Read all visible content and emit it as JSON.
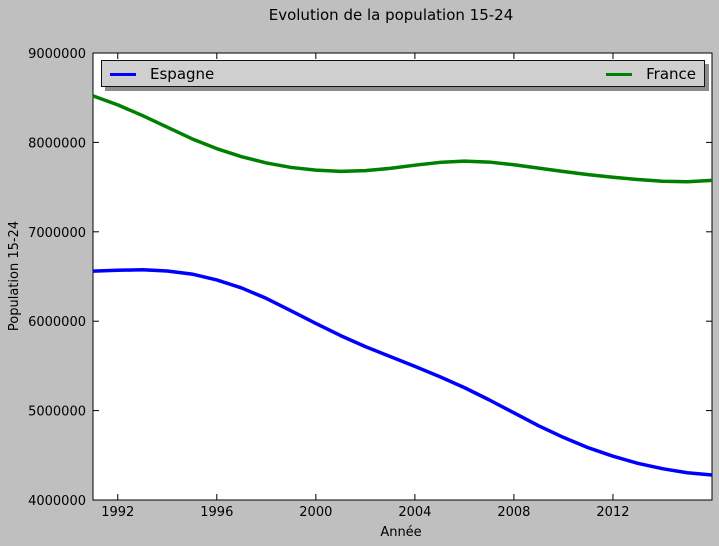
{
  "chart_data": {
    "type": "line",
    "title": "Evolution de la population 15-24",
    "xlabel": "Année",
    "ylabel": "Population 15-24",
    "xlim": [
      1991,
      2016
    ],
    "ylim": [
      4000000,
      9000000
    ],
    "x_ticks": [
      1992,
      1996,
      2000,
      2004,
      2008,
      2012
    ],
    "y_ticks": [
      4000000,
      5000000,
      6000000,
      7000000,
      8000000,
      9000000
    ],
    "grid": false,
    "legend_position": "top",
    "x": [
      1991,
      1992,
      1993,
      1994,
      1995,
      1996,
      1997,
      1998,
      1999,
      2000,
      2001,
      2002,
      2003,
      2004,
      2005,
      2006,
      2007,
      2008,
      2009,
      2010,
      2011,
      2012,
      2013,
      2014,
      2015,
      2016
    ],
    "series": [
      {
        "name": "Espagne",
        "color": "#0000ff",
        "values": [
          6560000,
          6570000,
          6575000,
          6562000,
          6527000,
          6462000,
          6372000,
          6255000,
          6116000,
          5975000,
          5839000,
          5716000,
          5605000,
          5495000,
          5380000,
          5257000,
          5120000,
          4975000,
          4830000,
          4700000,
          4585000,
          4490000,
          4410000,
          4350000,
          4305000,
          4280000
        ]
      },
      {
        "name": "France",
        "color": "#008000",
        "values": [
          8520000,
          8420000,
          8300000,
          8170000,
          8040000,
          7930000,
          7840000,
          7770000,
          7720000,
          7690000,
          7676000,
          7684000,
          7710000,
          7745000,
          7776000,
          7790000,
          7780000,
          7750000,
          7712000,
          7674000,
          7640000,
          7610000,
          7585000,
          7566000,
          7560000,
          7575000
        ]
      }
    ]
  }
}
